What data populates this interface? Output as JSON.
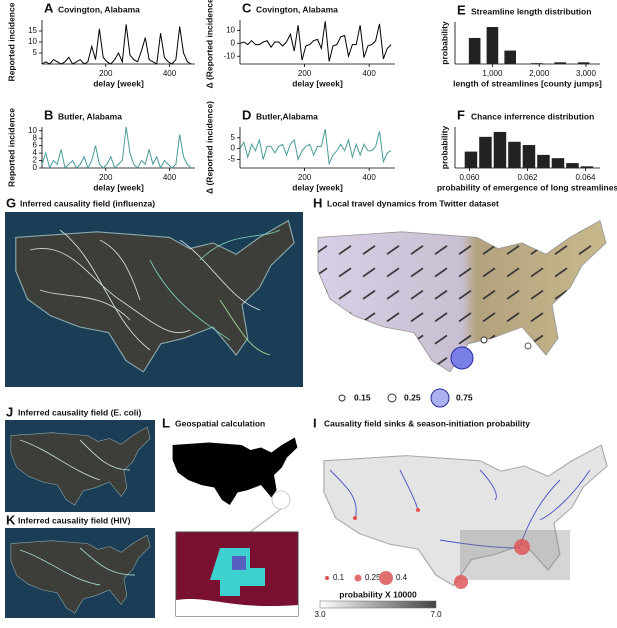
{
  "chart_data": [
    {
      "type": "line",
      "label": "A",
      "title": "Covington, Alabama",
      "xlabel": "delay [week]",
      "ylabel": "Reported incidence",
      "color": "#000000",
      "x": [
        0,
        12,
        24,
        36,
        48,
        60,
        72,
        84,
        96,
        108,
        120,
        132,
        144,
        156,
        168,
        180,
        192,
        204,
        216,
        228,
        240,
        252,
        264,
        276,
        288,
        300,
        312,
        324,
        336,
        348,
        360,
        372,
        384,
        396,
        408,
        420,
        432,
        444,
        456,
        468
      ],
      "values": [
        0,
        1,
        0,
        2,
        1,
        0,
        1,
        3,
        0,
        1,
        2,
        0,
        1,
        8,
        2,
        16,
        3,
        1,
        0,
        2,
        5,
        1,
        18,
        4,
        2,
        1,
        6,
        12,
        2,
        1,
        0,
        14,
        3,
        1,
        0,
        2,
        17,
        5,
        1,
        0
      ],
      "xlim": [
        0,
        480
      ],
      "ylim": [
        0,
        20
      ],
      "xticks": [
        200,
        400
      ],
      "yticks": [
        5,
        10,
        15
      ]
    },
    {
      "type": "line",
      "label": "B",
      "title": "Butler, Alabama",
      "xlabel": "delay [week]",
      "ylabel": "Reported incidence",
      "color": "#4a9a9a",
      "x": [
        0,
        12,
        24,
        36,
        48,
        60,
        72,
        84,
        96,
        108,
        120,
        132,
        144,
        156,
        168,
        180,
        192,
        204,
        216,
        228,
        240,
        252,
        264,
        276,
        288,
        300,
        312,
        324,
        336,
        348,
        360,
        372,
        384,
        396,
        408,
        420,
        432,
        444,
        456,
        468
      ],
      "values": [
        1,
        4,
        0,
        2,
        1,
        5,
        0,
        1,
        2,
        0,
        1,
        3,
        0,
        2,
        6,
        1,
        0,
        1,
        3,
        0,
        1,
        2,
        11,
        4,
        1,
        0,
        2,
        1,
        5,
        1,
        3,
        0,
        2,
        1,
        0,
        1,
        9,
        3,
        1,
        0
      ],
      "xlim": [
        0,
        480
      ],
      "ylim": [
        0,
        11
      ],
      "xticks": [
        200,
        400
      ],
      "yticks": [
        0,
        2,
        4,
        6,
        8,
        10
      ]
    },
    {
      "type": "line",
      "label": "C",
      "title": "Covington, Alabama",
      "xlabel": "delay [week]",
      "ylabel": "Δ (Reported incidence)",
      "color": "#000000",
      "x": [
        0,
        12,
        24,
        36,
        48,
        60,
        72,
        84,
        96,
        108,
        120,
        132,
        144,
        156,
        168,
        180,
        192,
        204,
        216,
        228,
        240,
        252,
        264,
        276,
        288,
        300,
        312,
        324,
        336,
        348,
        360,
        372,
        384,
        396,
        408,
        420,
        432,
        444,
        456,
        468
      ],
      "values": [
        0,
        1,
        -1,
        2,
        -1,
        -1,
        1,
        2,
        -3,
        1,
        1,
        -2,
        1,
        7,
        -6,
        14,
        -13,
        -2,
        -1,
        2,
        3,
        -4,
        17,
        -14,
        -2,
        -1,
        5,
        6,
        -10,
        -1,
        -1,
        14,
        -11,
        -2,
        -1,
        2,
        15,
        -12,
        -4,
        -1
      ],
      "xlim": [
        0,
        480
      ],
      "ylim": [
        -16,
        18
      ],
      "xticks": [
        200,
        400
      ],
      "yticks": [
        -10,
        0,
        10
      ]
    },
    {
      "type": "line",
      "label": "D",
      "title": "Butler,Alabama",
      "xlabel": "delay [week]",
      "ylabel": "Δ (Reported incidence)",
      "color": "#4a9a9a",
      "x": [
        0,
        12,
        24,
        36,
        48,
        60,
        72,
        84,
        96,
        108,
        120,
        132,
        144,
        156,
        168,
        180,
        192,
        204,
        216,
        228,
        240,
        252,
        264,
        276,
        288,
        300,
        312,
        324,
        336,
        348,
        360,
        372,
        384,
        396,
        408,
        420,
        432,
        444,
        456,
        468
      ],
      "values": [
        0,
        3,
        -4,
        2,
        -1,
        4,
        -5,
        1,
        1,
        -2,
        1,
        2,
        -3,
        2,
        4,
        -5,
        -1,
        1,
        2,
        -3,
        1,
        1,
        9,
        -7,
        -3,
        -1,
        2,
        -1,
        4,
        -4,
        2,
        -3,
        2,
        -1,
        -1,
        1,
        8,
        -6,
        -2,
        -1
      ],
      "xlim": [
        0,
        480
      ],
      "ylim": [
        -9,
        10
      ],
      "xticks": [
        200,
        400
      ],
      "yticks": [
        -5,
        0,
        5
      ]
    },
    {
      "type": "bar",
      "label": "E",
      "title": "Streamline length distribution",
      "xlabel": "length of streamlines [county jumps]",
      "ylabel": "probability",
      "color": "#222222",
      "x": [
        620,
        1000,
        1380,
        1950,
        2450,
        2950
      ],
      "values": [
        0.31,
        0.44,
        0.16,
        0.01,
        0.02,
        0.02
      ],
      "xlim": [
        200,
        3300
      ],
      "ylim": [
        0,
        0.5
      ],
      "xticks": [
        {
          "value": 1000,
          "label": "1,000"
        },
        {
          "value": 2000,
          "label": "2,000"
        },
        {
          "value": 3000,
          "label": "3,000"
        }
      ]
    },
    {
      "type": "histogram",
      "label": "F",
      "title": "Chance inferrence distribution",
      "xlabel": "probability of emergence of long streamlines",
      "ylabel": "probability",
      "color": "#222222",
      "bins": [
        0.0598,
        0.0603,
        0.0608,
        0.0613,
        0.0618,
        0.0623,
        0.0628,
        0.0633,
        0.0638,
        0.0643
      ],
      "values": [
        0.1,
        0.19,
        0.22,
        0.16,
        0.14,
        0.08,
        0.06,
        0.03,
        0.01
      ],
      "xlim": [
        0.0595,
        0.0645
      ],
      "ylim": [
        0,
        0.25
      ],
      "xticks": [
        {
          "value": 0.06,
          "label": "0.060"
        },
        {
          "value": 0.062,
          "label": "0.062"
        },
        {
          "value": 0.064,
          "label": "0.064"
        }
      ]
    }
  ],
  "maps": [
    {
      "label": "G",
      "title": "Inferred causality field (influenza)"
    },
    {
      "label": "H",
      "title": "Local travel dynamics from Twitter dataset"
    },
    {
      "label": "J",
      "title": "Inferred causality field (E. coli)"
    },
    {
      "label": "K",
      "title": "Inferred causality field (HIV)"
    },
    {
      "label": "L",
      "title": "Geospatial calculation"
    },
    {
      "label": "I",
      "title": "Causality field sinks & season-initiation probability"
    }
  ],
  "h_legend": [
    "0.15",
    "0.25",
    "0.75"
  ],
  "i_legend": [
    "0.1",
    "0.25",
    "0.4"
  ],
  "colorbar_label": "probability X 10000",
  "colorbar_ticks": [
    "3.0",
    "7.0"
  ]
}
